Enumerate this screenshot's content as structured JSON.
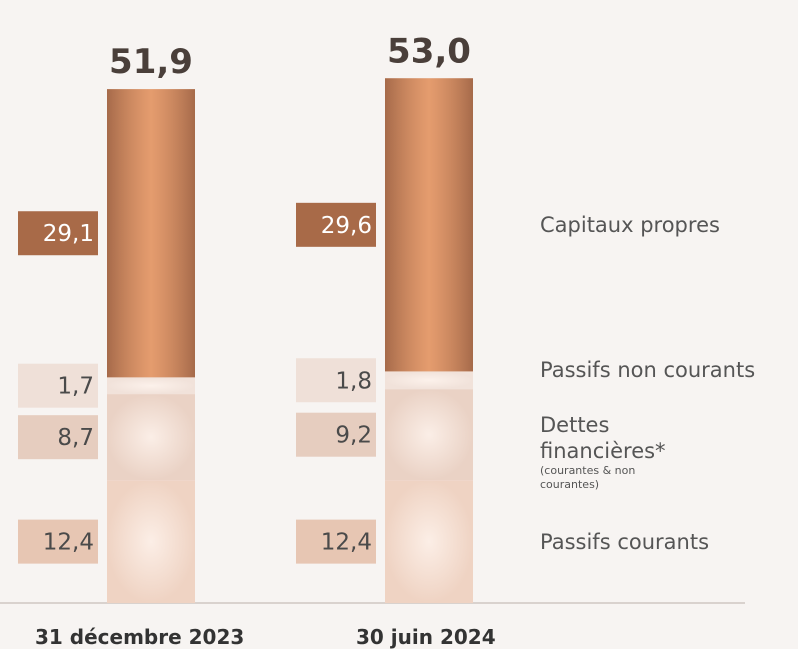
{
  "chart_data": {
    "type": "stacked-bar",
    "categories": [
      "31 décembre 2023",
      "30 juin 2024"
    ],
    "totals": [
      51.9,
      53.0
    ],
    "total_labels": [
      "51,9",
      "53,0"
    ],
    "series": [
      {
        "name": "Passifs courants",
        "color": "#efd3c3",
        "label_color": "#e7c6b3",
        "values": [
          12.4,
          12.4
        ],
        "value_labels": [
          "12,4",
          "12,4"
        ]
      },
      {
        "name": "Dettes financières*",
        "note": "(courantes & non courantes)",
        "color": "#ead2c5",
        "label_color": "#e6cdbf",
        "values": [
          8.7,
          9.2
        ],
        "value_labels": [
          "8,7",
          "9,2"
        ]
      },
      {
        "name": "Passifs non courants",
        "color": "#f1e2da",
        "label_color": "#efe0d8",
        "values": [
          1.7,
          1.8
        ],
        "value_labels": [
          "1,7",
          "1,8"
        ]
      },
      {
        "name": "Capitaux propres",
        "color": "#d08a5f",
        "label_color": "#a86a48",
        "values": [
          29.1,
          29.6
        ],
        "value_labels": [
          "29,1",
          "29,6"
        ]
      }
    ]
  }
}
